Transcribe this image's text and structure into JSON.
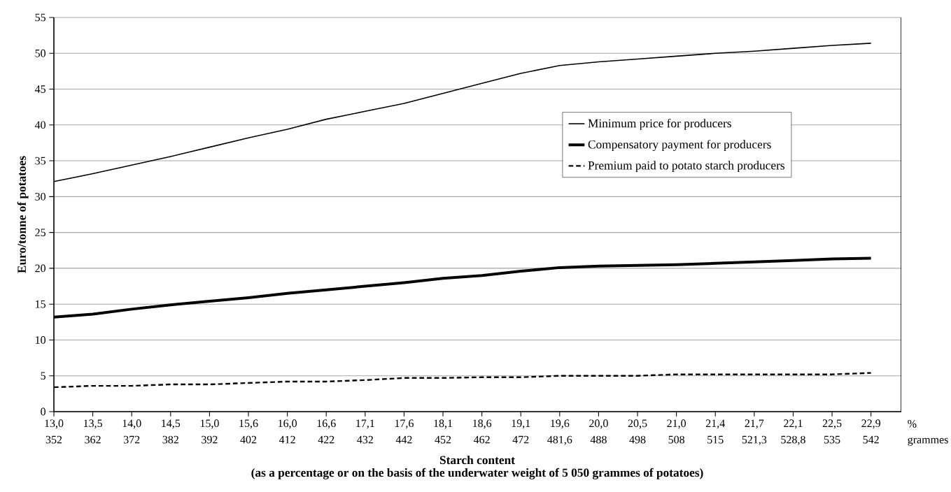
{
  "chart_data": {
    "type": "line",
    "ylabel": "Euro/tonne of potatoes",
    "xlabel": "Starch content",
    "categories": [
      "13,0",
      "13,5",
      "14,0",
      "14,5",
      "15,0",
      "15,6",
      "16,0",
      "16,6",
      "17,1",
      "17,6",
      "18,1",
      "18,6",
      "19,1",
      "19,6",
      "20,0",
      "20,5",
      "21,0",
      "21,4",
      "21,7",
      "22,1",
      "22,5",
      "22,9"
    ],
    "series": [
      {
        "name": "Minimum price for producers",
        "color": "#000000",
        "line_style": "solid",
        "values": [
          32.1,
          33.2,
          34.4,
          35.6,
          36.9,
          38.2,
          39.4,
          40.8,
          41.9,
          43.0,
          44.4,
          45.8,
          47.2,
          48.3,
          48.8,
          49.2,
          49.6,
          50.0,
          50.3,
          50.7,
          51.1,
          51.4
        ]
      },
      {
        "name": "Compensatory payment for producers",
        "color": "#000000",
        "line_style": "solid",
        "values": [
          13.2,
          13.6,
          14.3,
          14.9,
          15.4,
          15.9,
          16.5,
          17.0,
          17.5,
          18.0,
          18.6,
          19.0,
          19.6,
          20.1,
          20.3,
          20.4,
          20.5,
          20.7,
          20.9,
          21.1,
          21.3,
          21.4
        ]
      },
      {
        "name": "Premium paid to potato starch producers",
        "color": "#000000",
        "line_style": "dashed",
        "values": [
          3.4,
          3.6,
          3.6,
          3.8,
          3.8,
          4.0,
          4.2,
          4.2,
          4.4,
          4.7,
          4.7,
          4.8,
          4.8,
          5.0,
          5.0,
          5.0,
          5.2,
          5.2,
          5.2,
          5.2,
          5.2,
          5.4
        ]
      }
    ],
    "annotations": [
      "352",
      "362",
      "372",
      "382",
      "392",
      "402",
      "412",
      "422",
      "432",
      "442",
      "452",
      "462",
      "472",
      "481,6",
      "488",
      "498",
      "508",
      "515",
      "521,3",
      "528,8",
      "535",
      "542",
      "%",
      "grammes",
      "(as a percentage or on the basis of the underwater weight of 5 050 grammes of potatoes)"
    ],
    "ylim": [
      0,
      55
    ],
    "yticks": [
      0,
      5,
      10,
      15,
      20,
      25,
      30,
      35,
      40,
      45,
      50,
      55
    ],
    "grid": "y",
    "legend": "right",
    "marker": "none"
  }
}
